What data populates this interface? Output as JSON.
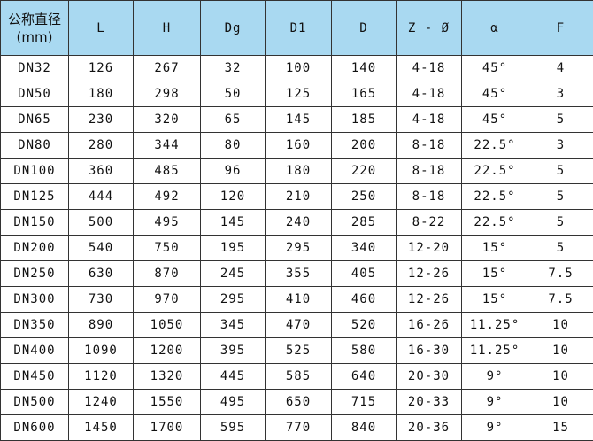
{
  "header_color": "#a9d9f1",
  "headers": [
    "公称直径",
    "(mm)",
    "L",
    "H",
    "Dg",
    "D1",
    "D",
    "Z - Ø",
    "α",
    "F"
  ],
  "rows": [
    [
      "DN32",
      "126",
      "267",
      "32",
      "100",
      "140",
      "4-18",
      "45°",
      "4"
    ],
    [
      "DN50",
      "180",
      "298",
      "50",
      "125",
      "165",
      "4-18",
      "45°",
      "3"
    ],
    [
      "DN65",
      "230",
      "320",
      "65",
      "145",
      "185",
      "4-18",
      "45°",
      "5"
    ],
    [
      "DN80",
      "280",
      "344",
      "80",
      "160",
      "200",
      "8-18",
      "22.5°",
      "3"
    ],
    [
      "DN100",
      "360",
      "485",
      "96",
      "180",
      "220",
      "8-18",
      "22.5°",
      "5"
    ],
    [
      "DN125",
      "444",
      "492",
      "120",
      "210",
      "250",
      "8-18",
      "22.5°",
      "5"
    ],
    [
      "DN150",
      "500",
      "495",
      "145",
      "240",
      "285",
      "8-22",
      "22.5°",
      "5"
    ],
    [
      "DN200",
      "540",
      "750",
      "195",
      "295",
      "340",
      "12-20",
      "15°",
      "5"
    ],
    [
      "DN250",
      "630",
      "870",
      "245",
      "355",
      "405",
      "12-26",
      "15°",
      "7.5"
    ],
    [
      "DN300",
      "730",
      "970",
      "295",
      "410",
      "460",
      "12-26",
      "15°",
      "7.5"
    ],
    [
      "DN350",
      "890",
      "1050",
      "345",
      "470",
      "520",
      "16-26",
      "11.25°",
      "10"
    ],
    [
      "DN400",
      "1090",
      "1200",
      "395",
      "525",
      "580",
      "16-30",
      "11.25°",
      "10"
    ],
    [
      "DN450",
      "1120",
      "1320",
      "445",
      "585",
      "640",
      "20-30",
      "9°",
      "10"
    ],
    [
      "DN500",
      "1240",
      "1550",
      "495",
      "650",
      "715",
      "20-33",
      "9°",
      "10"
    ],
    [
      "DN600",
      "1450",
      "1700",
      "595",
      "770",
      "840",
      "20-36",
      "9°",
      "15"
    ]
  ]
}
